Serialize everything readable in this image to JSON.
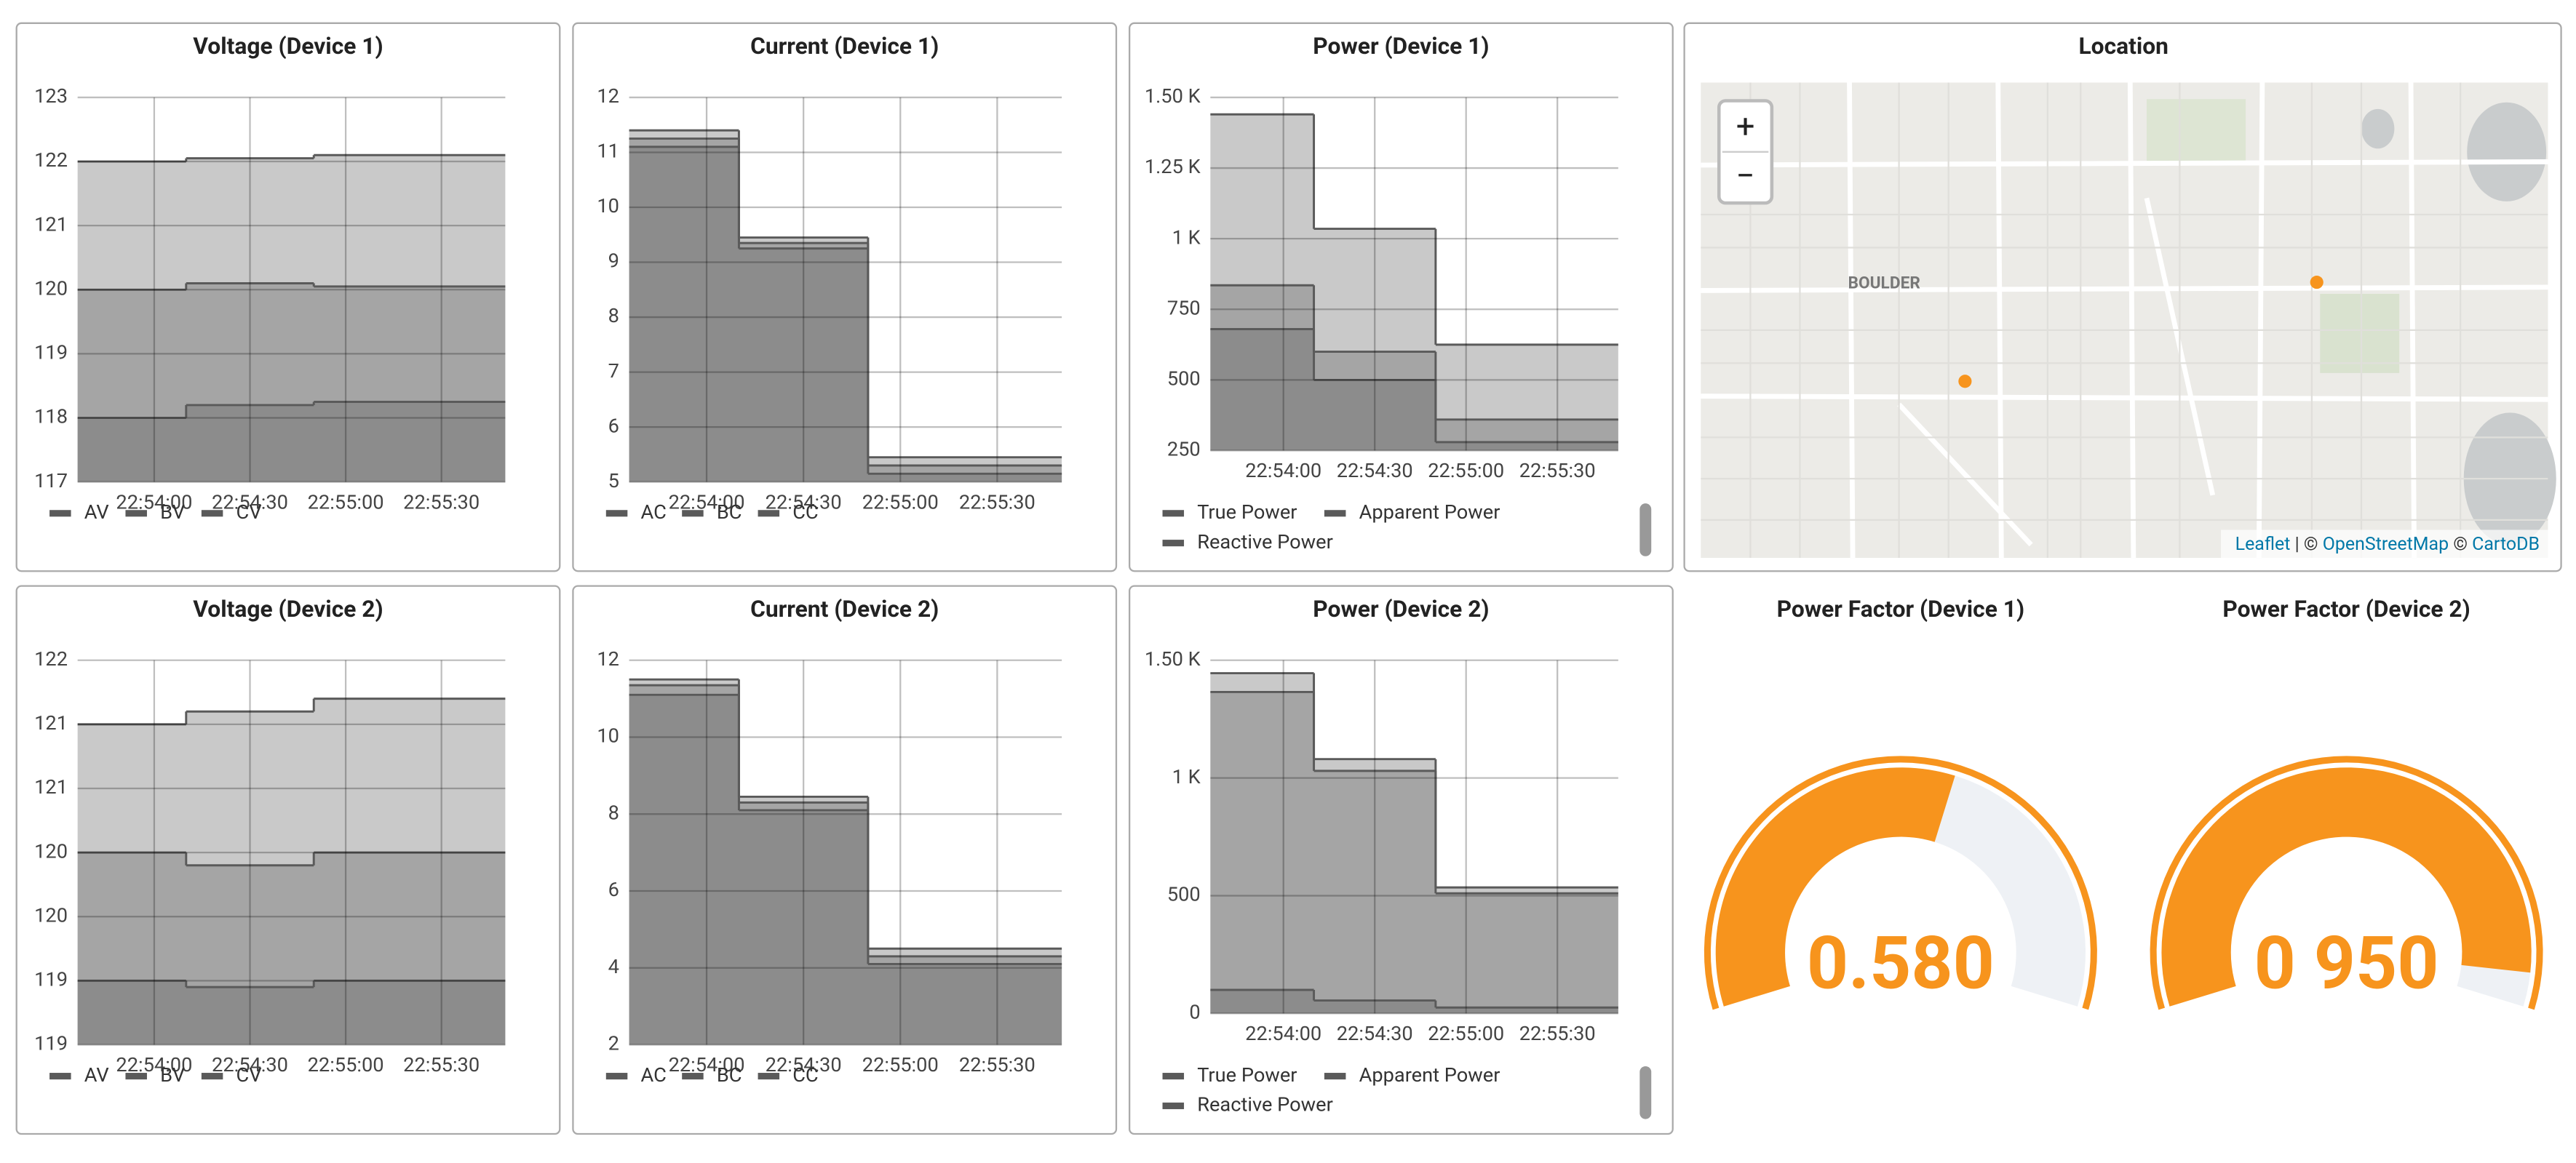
{
  "chart_data": [
    {
      "type": "step-area",
      "title": "Voltage (Device 1)",
      "x": [
        "22:53:36",
        "22:54:10",
        "22:54:50"
      ],
      "xlim": [
        "22:53:36",
        "22:55:50"
      ],
      "xticks": [
        "22:54:00",
        "22:54:30",
        "22:55:00",
        "22:55:30"
      ],
      "ylim": [
        117,
        123
      ],
      "yticks": [
        117,
        118,
        119,
        120,
        121,
        122,
        123
      ],
      "series": [
        {
          "name": "AV",
          "color": "#5a5a5a",
          "values": [
            118,
            118.2,
            118.25
          ]
        },
        {
          "name": "BV",
          "color": "#5a5a5a",
          "values": [
            120,
            120.1,
            120.05
          ]
        },
        {
          "name": "CV",
          "color": "#5a5a5a",
          "values": [
            122,
            122.05,
            122.1
          ]
        }
      ]
    },
    {
      "type": "step-area",
      "title": "Current (Device 1)",
      "x": [
        "22:53:36",
        "22:54:10",
        "22:54:50"
      ],
      "xlim": [
        "22:53:36",
        "22:55:50"
      ],
      "xticks": [
        "22:54:00",
        "22:54:30",
        "22:55:00",
        "22:55:30"
      ],
      "ylim": [
        5,
        12
      ],
      "yticks": [
        5,
        6,
        7,
        8,
        9,
        10,
        11,
        12
      ],
      "series": [
        {
          "name": "AC",
          "color": "#5a5a5a",
          "values": [
            11.1,
            9.25,
            5.15
          ]
        },
        {
          "name": "BC",
          "color": "#5a5a5a",
          "values": [
            11.25,
            9.35,
            5.3
          ]
        },
        {
          "name": "CC",
          "color": "#5a5a5a",
          "values": [
            11.4,
            9.45,
            5.45
          ]
        }
      ]
    },
    {
      "type": "step-area",
      "title": "Power (Device 1)",
      "x": [
        "22:53:36",
        "22:54:10",
        "22:54:50"
      ],
      "xlim": [
        "22:53:36",
        "22:55:50"
      ],
      "xticks": [
        "22:54:00",
        "22:54:30",
        "22:55:00",
        "22:55:30"
      ],
      "ylim": [
        250,
        1500
      ],
      "yticks": [
        250,
        500,
        750,
        {
          "value": 1000,
          "label": "1 K"
        },
        {
          "value": 1250,
          "label": "1.25 K"
        },
        {
          "value": 1500,
          "label": "1.50 K"
        }
      ],
      "series": [
        {
          "name": "True Power",
          "color": "#5a5a5a",
          "values": [
            835,
            600,
            360
          ]
        },
        {
          "name": "Apparent Power",
          "color": "#5a5a5a",
          "values": [
            1440,
            1035,
            625
          ]
        },
        {
          "name": "Reactive Power",
          "color": "#5a5a5a",
          "values": [
            680,
            500,
            280
          ]
        }
      ]
    },
    {
      "type": "step-area",
      "title": "Voltage (Device 2)",
      "x": [
        "22:53:36",
        "22:54:10",
        "22:54:50"
      ],
      "xlim": [
        "22:53:36",
        "22:55:50"
      ],
      "xticks": [
        "22:54:00",
        "22:54:30",
        "22:55:00",
        "22:55:30"
      ],
      "ylim": [
        119,
        122
      ],
      "yticks": [
        119,
        {
          "value": 119.5,
          "label": "119"
        },
        120,
        {
          "value": 120.5,
          "label": "120"
        },
        121,
        {
          "value": 121.5,
          "label": "121"
        },
        122
      ],
      "series": [
        {
          "name": "AV",
          "color": "#5a5a5a",
          "values": [
            119.5,
            119.45,
            119.5
          ]
        },
        {
          "name": "BV",
          "color": "#5a5a5a",
          "values": [
            120.5,
            120.4,
            120.5
          ]
        },
        {
          "name": "CV",
          "color": "#5a5a5a",
          "values": [
            121.5,
            121.6,
            121.7
          ]
        }
      ]
    },
    {
      "type": "step-area",
      "title": "Current (Device 2)",
      "x": [
        "22:53:36",
        "22:54:10",
        "22:54:50"
      ],
      "xlim": [
        "22:53:36",
        "22:55:50"
      ],
      "xticks": [
        "22:54:00",
        "22:54:30",
        "22:55:00",
        "22:55:30"
      ],
      "ylim": [
        2,
        12
      ],
      "yticks": [
        2,
        4,
        6,
        8,
        10,
        12
      ],
      "series": [
        {
          "name": "AC",
          "color": "#5a5a5a",
          "values": [
            11.1,
            8.1,
            4.1
          ]
        },
        {
          "name": "BC",
          "color": "#5a5a5a",
          "values": [
            11.35,
            8.3,
            4.3
          ]
        },
        {
          "name": "CC",
          "color": "#5a5a5a",
          "values": [
            11.5,
            8.45,
            4.5
          ]
        }
      ]
    },
    {
      "type": "step-area",
      "title": "Power (Device 2)",
      "x": [
        "22:53:36",
        "22:54:10",
        "22:54:50"
      ],
      "xlim": [
        "22:53:36",
        "22:55:50"
      ],
      "xticks": [
        "22:54:00",
        "22:54:30",
        "22:55:00",
        "22:55:30"
      ],
      "ylim": [
        0,
        1500
      ],
      "yticks": [
        0,
        500,
        {
          "value": 1000,
          "label": "1 K"
        },
        {
          "value": 1500,
          "label": "1.50 K"
        }
      ],
      "series": [
        {
          "name": "True Power",
          "color": "#5a5a5a",
          "values": [
            1365,
            1030,
            510
          ]
        },
        {
          "name": "Apparent Power",
          "color": "#5a5a5a",
          "values": [
            1445,
            1080,
            535
          ]
        },
        {
          "name": "Reactive Power",
          "color": "#5a5a5a",
          "values": [
            100,
            55,
            25
          ]
        }
      ]
    },
    {
      "type": "gauge",
      "title": "Power Factor (Device 1)",
      "values": [
        0.58
      ],
      "value_labels": [
        "0.580"
      ],
      "ylim": [
        0,
        1
      ],
      "color": "#f7941d"
    },
    {
      "type": "gauge",
      "title": "Power Factor (Device 2)",
      "values": [
        0.95
      ],
      "value_labels": [
        "0 950"
      ],
      "ylim": [
        0,
        1
      ],
      "color": "#f7941d"
    }
  ],
  "map": {
    "title": "Location",
    "city": "BOULDER",
    "zoom_in": "+",
    "zoom_out": "−",
    "attribution": [
      "Leaflet",
      " | © ",
      "OpenStreetMap",
      " © ",
      "CartoDB"
    ]
  }
}
